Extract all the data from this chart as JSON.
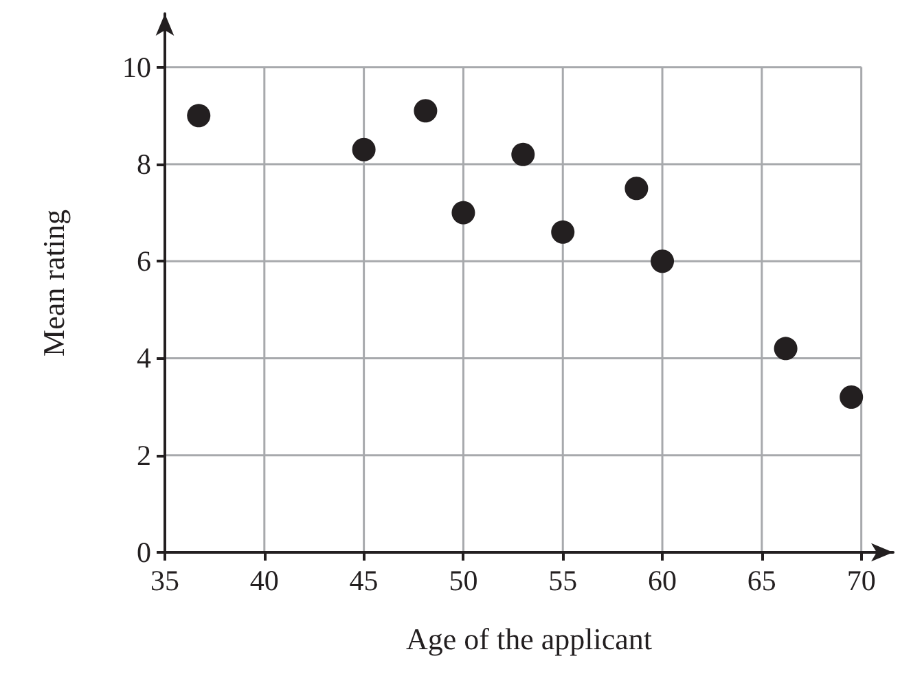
{
  "chart_data": {
    "type": "scatter",
    "xlabel": "Age of the applicant",
    "ylabel": "Mean rating",
    "x": [
      36.7,
      45,
      48.1,
      50,
      53,
      55,
      58.7,
      60,
      66.2,
      69.5
    ],
    "series": [
      {
        "color": "#231f20",
        "values": [
          9.0,
          8.3,
          9.1,
          7.0,
          8.2,
          6.6,
          7.5,
          6.0,
          4.2,
          3.2
        ]
      }
    ],
    "xlim": [
      35,
      71.6
    ],
    "ylim": [
      0,
      11.1
    ],
    "xticks": [
      35,
      40,
      45,
      50,
      55,
      60,
      65,
      70
    ],
    "yticks": [
      0,
      2,
      4,
      6,
      8,
      10
    ],
    "grid": true,
    "marker": "circle"
  }
}
